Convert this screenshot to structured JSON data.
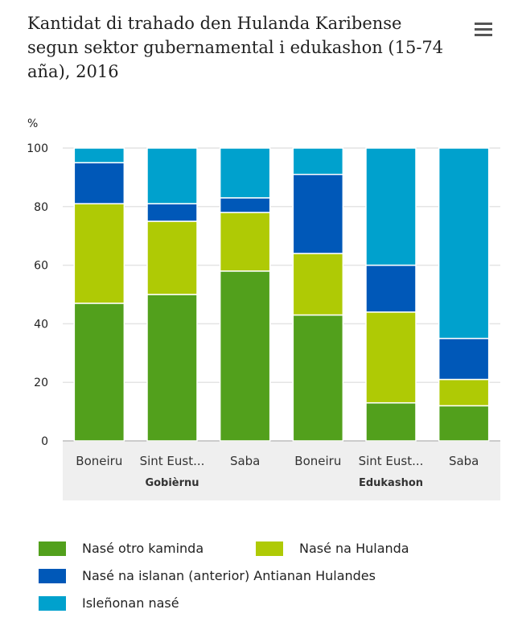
{
  "title": "Kantidat di trahado den Hulanda Karibense segun sektor gubernamental i edukashon (15-74 aña), 2016",
  "menu_icon": "hamburger-menu-icon",
  "chart_data": {
    "type": "bar",
    "stacked": true,
    "title": "Kantidat di trahado den Hulanda Karibense segun sektor gubernamental i edukashon (15-74 aña), 2016",
    "ylabel": "%",
    "ylim": [
      0,
      100
    ],
    "yticks": [
      0,
      20,
      40,
      60,
      80,
      100
    ],
    "grid": true,
    "categories": [
      "Boneiru",
      "Sint Eust...",
      "Saba",
      "Boneiru",
      "Sint Eust...",
      "Saba"
    ],
    "groups": [
      {
        "label": "Gobièrnu",
        "span": [
          0,
          2
        ]
      },
      {
        "label": "Edukashon",
        "span": [
          3,
          5
        ]
      }
    ],
    "series": [
      {
        "name": "Nasé otro kaminda",
        "color": "#52a01c",
        "values": [
          47,
          50,
          58,
          43,
          13,
          12
        ]
      },
      {
        "name": "Nasé na Hulanda",
        "color": "#afca05",
        "values": [
          34,
          25,
          20,
          21,
          31,
          9
        ]
      },
      {
        "name": "Nasé na islanan (anterior) Antianan Hulandes",
        "color": "#0058b8",
        "values": [
          14,
          6,
          5,
          27,
          16,
          14
        ]
      },
      {
        "name": "Isleñonan nasé",
        "color": "#00a1cd",
        "values": [
          5,
          19,
          17,
          9,
          40,
          65
        ]
      }
    ],
    "legend_position": "bottom"
  }
}
